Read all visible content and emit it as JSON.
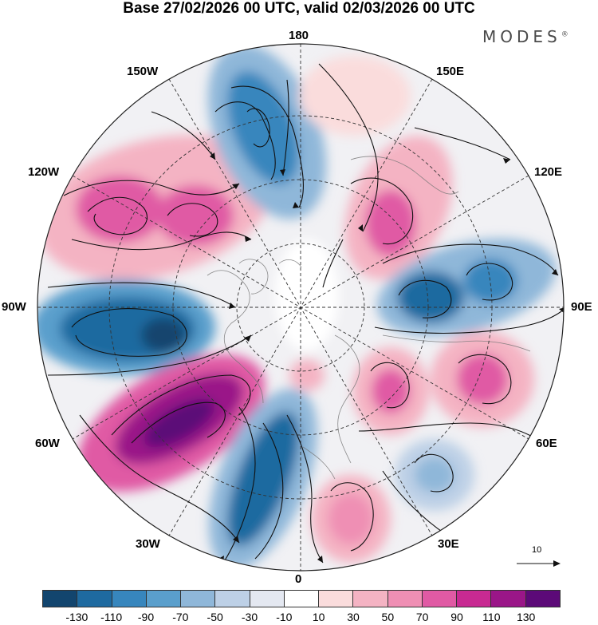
{
  "title": "Base 27/02/2026 00 UTC, valid 02/03/2026 00 UTC",
  "brand": "MODES",
  "brand_mark": "®",
  "longitude_labels": {
    "top": "180",
    "bottom": "0",
    "left": "90W",
    "right": "90E",
    "upper_left": "150W",
    "upper_right": "150E",
    "mid_upper_left": "120W",
    "mid_upper_right": "120E",
    "mid_lower_left": "60W",
    "mid_lower_right": "60E",
    "lower_left": "30W",
    "lower_right": "30E"
  },
  "vector_scale_label": "10",
  "colorbar": {
    "colors": [
      "#12456e",
      "#1e6aa0",
      "#3786bd",
      "#5a9fcc",
      "#8fb7d9",
      "#bdd0e6",
      "#e4e8f1",
      "#ffffff",
      "#fadcdc",
      "#f4b3c3",
      "#ef8fb4",
      "#e05aa4",
      "#c82a92",
      "#9a1688",
      "#5c0a78"
    ],
    "ticks": [
      "-130",
      "-110",
      "-90",
      "-70",
      "-50",
      "-30",
      "-10",
      "10",
      "30",
      "50",
      "70",
      "90",
      "110",
      "130"
    ]
  }
}
